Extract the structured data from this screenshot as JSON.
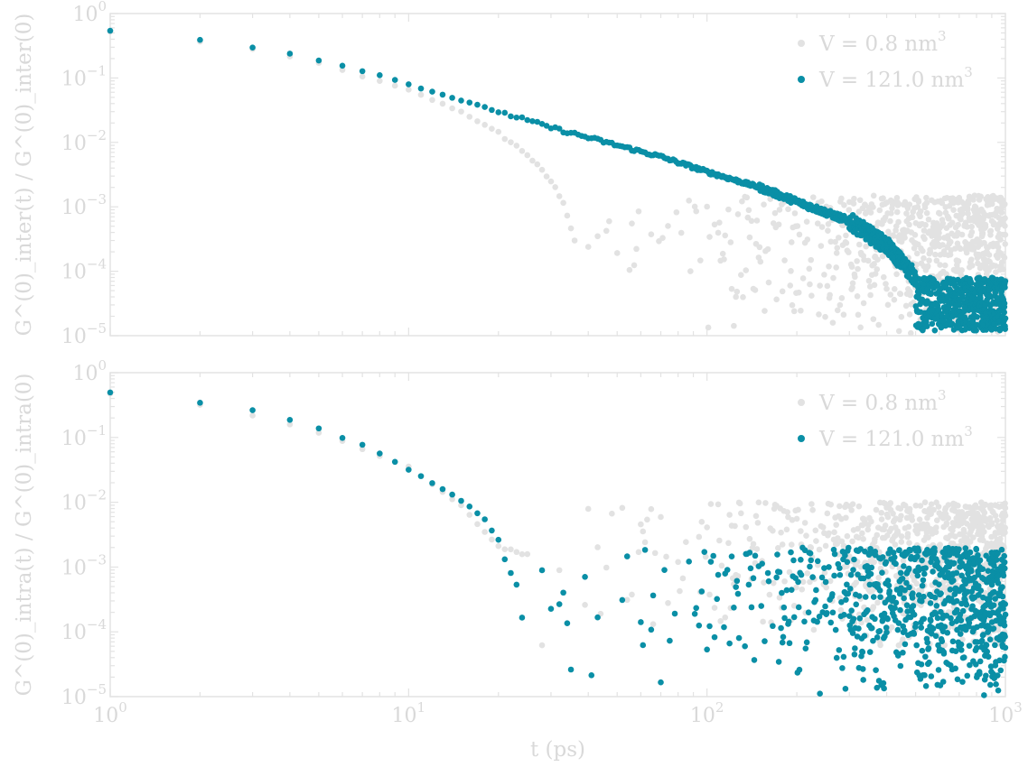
{
  "chart_data": [
    {
      "type": "scatter",
      "panel": "top",
      "ylabel": "G^(0)_inter(t) / G^(0)_inter(0)",
      "xlabel": "",
      "xscale": "log",
      "yscale": "log",
      "xlim": [
        1,
        1000
      ],
      "ylim": [
        1e-05,
        1
      ],
      "x_tick_labels": [],
      "y_tick_labels": [
        {
          "base": "10",
          "exp": "0"
        },
        {
          "base": "10",
          "exp": "−1"
        },
        {
          "base": "10",
          "exp": "−2"
        },
        {
          "base": "10",
          "exp": "−3"
        },
        {
          "base": "10",
          "exp": "−4"
        },
        {
          "base": "10",
          "exp": "−5"
        }
      ],
      "legend": {
        "placement": "top-right",
        "entries": [
          {
            "label": "V = 0.8 nm",
            "sup": "3",
            "color": "#e2e2e2"
          },
          {
            "label": "V = 121.0 nm",
            "sup": "3",
            "color": "#0a8fa6"
          }
        ]
      },
      "series": [
        {
          "name": "V = 0.8 nm³",
          "color": "#e2e2e2",
          "description": "decays as power law until t≈30 ps then drops to noise floor (1e-5 to 1e-3)",
          "key_points": [
            [
              1,
              0.52
            ],
            [
              2,
              0.37
            ],
            [
              3,
              0.28
            ],
            [
              5,
              0.17
            ],
            [
              10,
              0.065
            ],
            [
              15,
              0.03
            ],
            [
              20,
              0.014
            ],
            [
              25,
              0.0065
            ],
            [
              30,
              0.0025
            ],
            [
              33,
              0.0012
            ],
            [
              36,
              0.0003
            ]
          ],
          "noise_floor": {
            "x_range": [
              36,
              1000
            ],
            "y_range": [
              1e-05,
              0.0015
            ]
          }
        },
        {
          "name": "V = 121.0 nm³",
          "color": "#0a8fa6",
          "description": "power-law decay over whole range, noisy near 1e-5 beyond 500 ps",
          "key_points": [
            [
              1,
              0.55
            ],
            [
              2,
              0.39
            ],
            [
              3,
              0.3
            ],
            [
              4,
              0.24
            ],
            [
              5,
              0.19
            ],
            [
              6,
              0.155
            ],
            [
              7,
              0.13
            ],
            [
              8,
              0.11
            ],
            [
              10,
              0.08
            ],
            [
              15,
              0.045
            ],
            [
              20,
              0.03
            ],
            [
              30,
              0.017
            ],
            [
              50,
              0.009
            ],
            [
              70,
              0.006
            ],
            [
              100,
              0.0035
            ],
            [
              150,
              0.002
            ],
            [
              200,
              0.0012
            ],
            [
              300,
              0.0006
            ],
            [
              400,
              0.00025
            ],
            [
              500,
              8e-05
            ],
            [
              700,
              3e-05
            ],
            [
              1000,
              2e-05
            ]
          ]
        }
      ]
    },
    {
      "type": "scatter",
      "panel": "bottom",
      "ylabel": "G^(0)_intra(t) / G^(0)_intra(0)",
      "xlabel": "t (ps)",
      "xscale": "log",
      "yscale": "log",
      "xlim": [
        1,
        1000
      ],
      "ylim": [
        1e-05,
        1
      ],
      "x_tick_labels": [
        {
          "base": "10",
          "exp": "0"
        },
        {
          "base": "10",
          "exp": "1"
        },
        {
          "base": "10",
          "exp": "2"
        },
        {
          "base": "10",
          "exp": "3"
        }
      ],
      "y_tick_labels": [
        {
          "base": "10",
          "exp": "0"
        },
        {
          "base": "10",
          "exp": "−1"
        },
        {
          "base": "10",
          "exp": "−2"
        },
        {
          "base": "10",
          "exp": "−3"
        },
        {
          "base": "10",
          "exp": "−4"
        },
        {
          "base": "10",
          "exp": "−5"
        }
      ],
      "legend": {
        "placement": "top-right",
        "entries": [
          {
            "label": "V = 0.8 nm",
            "sup": "3",
            "color": "#e2e2e2"
          },
          {
            "label": "V = 121.0 nm",
            "sup": "3",
            "color": "#0a8fa6"
          }
        ]
      },
      "series": [
        {
          "name": "V = 0.8 nm³",
          "color": "#e2e2e2",
          "description": "decays until t≈20 ps then fluctuates around 1e-3",
          "key_points": [
            [
              1,
              0.47
            ],
            [
              2,
              0.32
            ],
            [
              3,
              0.22
            ],
            [
              5,
              0.12
            ],
            [
              10,
              0.035
            ],
            [
              15,
              0.009
            ],
            [
              20,
              0.002
            ],
            [
              25,
              0.0015
            ]
          ],
          "noise_floor": {
            "x_range": [
              20,
              1000
            ],
            "y_range": [
              5e-05,
              0.01
            ]
          }
        },
        {
          "name": "V = 121.0 nm³",
          "color": "#0a8fa6",
          "description": "decays until t≈20 ps then fluctuates between 1e-5 and 2e-3",
          "key_points": [
            [
              1,
              0.5
            ],
            [
              2,
              0.35
            ],
            [
              3,
              0.26
            ],
            [
              4,
              0.19
            ],
            [
              5,
              0.14
            ],
            [
              6,
              0.1
            ],
            [
              7,
              0.078
            ],
            [
              8,
              0.056
            ],
            [
              10,
              0.032
            ],
            [
              12,
              0.02
            ],
            [
              14,
              0.013
            ],
            [
              16,
              0.0085
            ],
            [
              18,
              0.0055
            ],
            [
              20,
              0.0025
            ],
            [
              22,
              0.0008
            ]
          ],
          "noise_floor": {
            "x_range": [
              22,
              1000
            ],
            "y_range": [
              1e-05,
              0.002
            ]
          }
        }
      ]
    }
  ]
}
